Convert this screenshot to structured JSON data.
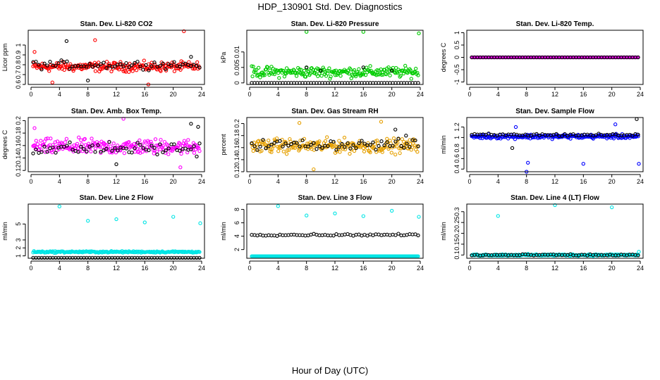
{
  "title": "HDP_130901  Std. Dev. Diagnostics",
  "xlabel": "Hour of Day (UTC)",
  "chart_data": [
    {
      "type": "scatter",
      "title": "Stan. Dev. Li-820 CO2",
      "ylabel": "Licor ppm",
      "xlim": [
        0,
        24
      ],
      "ylim": [
        0.6,
        1.15
      ],
      "xticks": [
        0,
        4,
        8,
        12,
        16,
        20,
        24
      ],
      "yticks": [
        0.6,
        0.7,
        0.8,
        0.9,
        1.0
      ],
      "series": [
        {
          "color": "#ff0000",
          "center": 0.78,
          "spread": 0.07,
          "outliers": [
            [
              0.5,
              0.93
            ],
            [
              9,
              1.05
            ],
            [
              21.5,
              1.14
            ],
            [
              16.5,
              0.6
            ],
            [
              3,
              0.62
            ]
          ]
        },
        {
          "color": "#000000",
          "center": 0.8,
          "spread": 0.06,
          "outliers": [
            [
              5,
              1.04
            ],
            [
              8,
              0.64
            ],
            [
              22.5,
              0.88
            ]
          ]
        }
      ]
    },
    {
      "type": "scatter",
      "title": "Stan. Dev. Li-820 Pressure",
      "ylabel": "kPa",
      "xlim": [
        0,
        24
      ],
      "ylim": [
        -0.0005,
        0.017
      ],
      "xticks": [
        0,
        4,
        8,
        12,
        16,
        20,
        24
      ],
      "yticks": [
        0.0,
        0.005,
        0.01
      ],
      "series": [
        {
          "color": "#00cc00",
          "center": 0.0035,
          "spread": 0.0025,
          "outliers": [
            [
              8,
              0.0165
            ],
            [
              16,
              0.0165
            ],
            [
              23.8,
              0.016
            ]
          ]
        },
        {
          "color": "#000000",
          "center": 0.0,
          "spread": 0.0,
          "outliers": [
            [
              8,
              0.005
            ],
            [
              16,
              0.005
            ],
            [
              10,
              0.004
            ],
            [
              20,
              0.004
            ]
          ]
        }
      ]
    },
    {
      "type": "scatter",
      "title": "Stan. Dev. Li-820 Temp.",
      "ylabel": "degrees C",
      "xlim": [
        0,
        24
      ],
      "ylim": [
        -1.1,
        1.1
      ],
      "xticks": [
        0,
        4,
        8,
        12,
        16,
        20,
        24
      ],
      "yticks": [
        -1.0,
        -0.5,
        0.0,
        0.5,
        1.0
      ],
      "series": [
        {
          "color": "#dd00dd",
          "center": 0.0,
          "spread": 0.0,
          "outliers": []
        },
        {
          "color": "#000000",
          "center": 0.0,
          "spread": 0.0,
          "outliers": []
        }
      ]
    },
    {
      "type": "scatter",
      "title": "Stan. Dev. Amb. Box Temp.",
      "ylabel": "degrees C",
      "xlim": [
        0,
        24
      ],
      "ylim": [
        0.118,
        0.205
      ],
      "xticks": [
        0,
        4,
        8,
        12,
        16,
        20,
        24
      ],
      "yticks": [
        0.12,
        0.14,
        0.16,
        0.18,
        0.2
      ],
      "series": [
        {
          "color": "#ff00ff",
          "center": 0.158,
          "spread": 0.018,
          "outliers": [
            [
              0.5,
              0.188
            ],
            [
              13,
              0.203
            ],
            [
              21,
              0.125
            ]
          ]
        },
        {
          "color": "#000000",
          "center": 0.155,
          "spread": 0.015,
          "outliers": [
            [
              23.5,
              0.19
            ],
            [
              22.5,
              0.195
            ],
            [
              12,
              0.13
            ]
          ]
        }
      ]
    },
    {
      "type": "scatter",
      "title": "Stan. Dev. Gas Stream RH",
      "ylabel": "percent",
      "xlim": [
        0,
        24
      ],
      "ylim": [
        0.12,
        0.21
      ],
      "xticks": [
        0,
        4,
        8,
        12,
        16,
        20,
        24
      ],
      "yticks": [
        0.12,
        0.14,
        0.16,
        0.18,
        0.2
      ],
      "series": [
        {
          "color": "#e6a000",
          "center": 0.163,
          "spread": 0.017,
          "outliers": [
            [
              18.5,
              0.203
            ],
            [
              9,
              0.124
            ],
            [
              7,
              0.201
            ]
          ]
        },
        {
          "color": "#000000",
          "center": 0.165,
          "spread": 0.012,
          "outliers": [
            [
              20.5,
              0.19
            ],
            [
              22,
              0.18
            ]
          ]
        }
      ]
    },
    {
      "type": "scatter",
      "title": "Stan. Dev. Sample Flow",
      "ylabel": "ml/min",
      "xlim": [
        0,
        24
      ],
      "ylim": [
        0.35,
        1.38
      ],
      "xticks": [
        0,
        4,
        8,
        12,
        16,
        20,
        24
      ],
      "yticks": [
        0.4,
        0.6,
        0.8,
        1.0,
        1.2
      ],
      "series": [
        {
          "color": "#0000ff",
          "center": 1.02,
          "spread": 0.06,
          "outliers": [
            [
              8,
              0.35
            ],
            [
              8.2,
              0.52
            ],
            [
              16,
              0.5
            ],
            [
              23.8,
              0.5
            ],
            [
              6.5,
              1.2
            ],
            [
              20.5,
              1.25
            ]
          ]
        },
        {
          "color": "#000000",
          "center": 1.05,
          "spread": 0.04,
          "outliers": [
            [
              23.5,
              1.35
            ],
            [
              6,
              0.8
            ]
          ]
        }
      ]
    },
    {
      "type": "scatter",
      "title": "Stan. Dev. Line 2 Flow",
      "ylabel": "ml/min",
      "xlim": [
        0,
        24
      ],
      "ylim": [
        0.7,
        7.5
      ],
      "xticks": [
        0,
        4,
        8,
        12,
        16,
        20,
        24
      ],
      "yticks": [
        1,
        2,
        3,
        5
      ],
      "series": [
        {
          "color": "#00e5e5",
          "center": 1.5,
          "spread": 0.15,
          "outliers": [
            [
              4,
              7.2
            ],
            [
              8,
              5.4
            ],
            [
              12,
              5.6
            ],
            [
              16,
              5.2
            ],
            [
              20,
              5.9
            ],
            [
              23.8,
              5.1
            ]
          ]
        },
        {
          "color": "#000000",
          "center": 0.75,
          "spread": 0.0,
          "outliers": []
        }
      ]
    },
    {
      "type": "scatter",
      "title": "Stan. Dev. Line 3 Flow",
      "ylabel": "ml/min",
      "xlim": [
        0,
        24
      ],
      "ylim": [
        0.7,
        8.8
      ],
      "xticks": [
        0,
        4,
        8,
        12,
        16,
        20,
        24
      ],
      "yticks": [
        2,
        4,
        6,
        8
      ],
      "series": [
        {
          "color": "#00e5e5",
          "center": 1.0,
          "spread": 0.0,
          "outliers": [
            [
              4,
              8.5
            ],
            [
              8,
              7.1
            ],
            [
              12,
              7.4
            ],
            [
              16,
              7.0
            ],
            [
              20,
              7.8
            ],
            [
              23.8,
              6.9
            ]
          ]
        },
        {
          "color": "#000000",
          "center": 4.2,
          "spread": 0.2,
          "outliers": []
        }
      ]
    },
    {
      "type": "scatter",
      "title": "Stan. Dev. Line 4 (LT) Flow",
      "ylabel": "ml/min",
      "xlim": [
        0,
        24
      ],
      "ylim": [
        0.085,
        0.335
      ],
      "xticks": [
        0,
        4,
        8,
        12,
        16,
        20,
        24
      ],
      "yticks": [
        0.1,
        0.15,
        0.2,
        0.25,
        0.3
      ],
      "series": [
        {
          "color": "#00e5e5",
          "center": 0.1,
          "spread": 0.006,
          "outliers": [
            [
              4,
              0.28
            ],
            [
              12,
              0.33
            ],
            [
              20,
              0.32
            ],
            [
              23.8,
              0.115
            ]
          ]
        },
        {
          "color": "#000000",
          "center": 0.1,
          "spread": 0.005,
          "outliers": []
        }
      ]
    }
  ]
}
